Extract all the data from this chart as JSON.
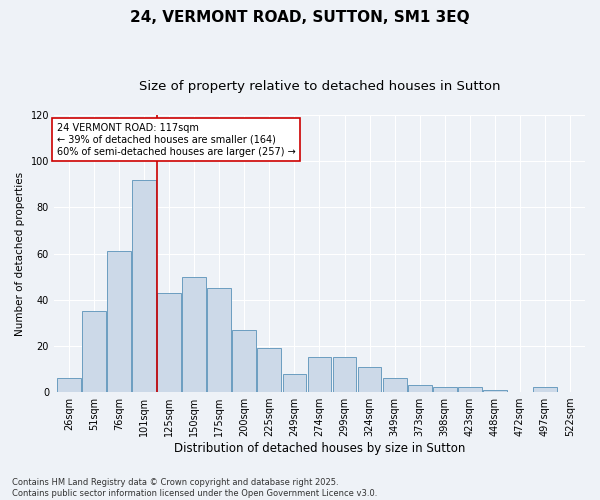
{
  "title1": "24, VERMONT ROAD, SUTTON, SM1 3EQ",
  "title2": "Size of property relative to detached houses in Sutton",
  "xlabel": "Distribution of detached houses by size in Sutton",
  "ylabel": "Number of detached properties",
  "categories": [
    "26sqm",
    "51sqm",
    "76sqm",
    "101sqm",
    "125sqm",
    "150sqm",
    "175sqm",
    "200sqm",
    "225sqm",
    "249sqm",
    "274sqm",
    "299sqm",
    "324sqm",
    "349sqm",
    "373sqm",
    "398sqm",
    "423sqm",
    "448sqm",
    "472sqm",
    "497sqm",
    "522sqm"
  ],
  "values": [
    6,
    35,
    61,
    92,
    43,
    50,
    45,
    27,
    19,
    8,
    15,
    15,
    11,
    6,
    3,
    2,
    2,
    1,
    0,
    2,
    0
  ],
  "bar_color": "#ccd9e8",
  "bar_edge_color": "#6b9dc0",
  "background_color": "#eef2f7",
  "grid_color": "#ffffff",
  "annotation_text": "24 VERMONT ROAD: 117sqm\n← 39% of detached houses are smaller (164)\n60% of semi-detached houses are larger (257) →",
  "annotation_box_color": "#ffffff",
  "annotation_box_edge_color": "#cc0000",
  "redline_x": 3.5,
  "ylim": [
    0,
    120
  ],
  "yticks": [
    0,
    20,
    40,
    60,
    80,
    100,
    120
  ],
  "footnote": "Contains HM Land Registry data © Crown copyright and database right 2025.\nContains public sector information licensed under the Open Government Licence v3.0.",
  "title_fontsize": 11,
  "subtitle_fontsize": 9.5,
  "xlabel_fontsize": 8.5,
  "ylabel_fontsize": 7.5,
  "tick_fontsize": 7,
  "annotation_fontsize": 7,
  "footnote_fontsize": 6
}
